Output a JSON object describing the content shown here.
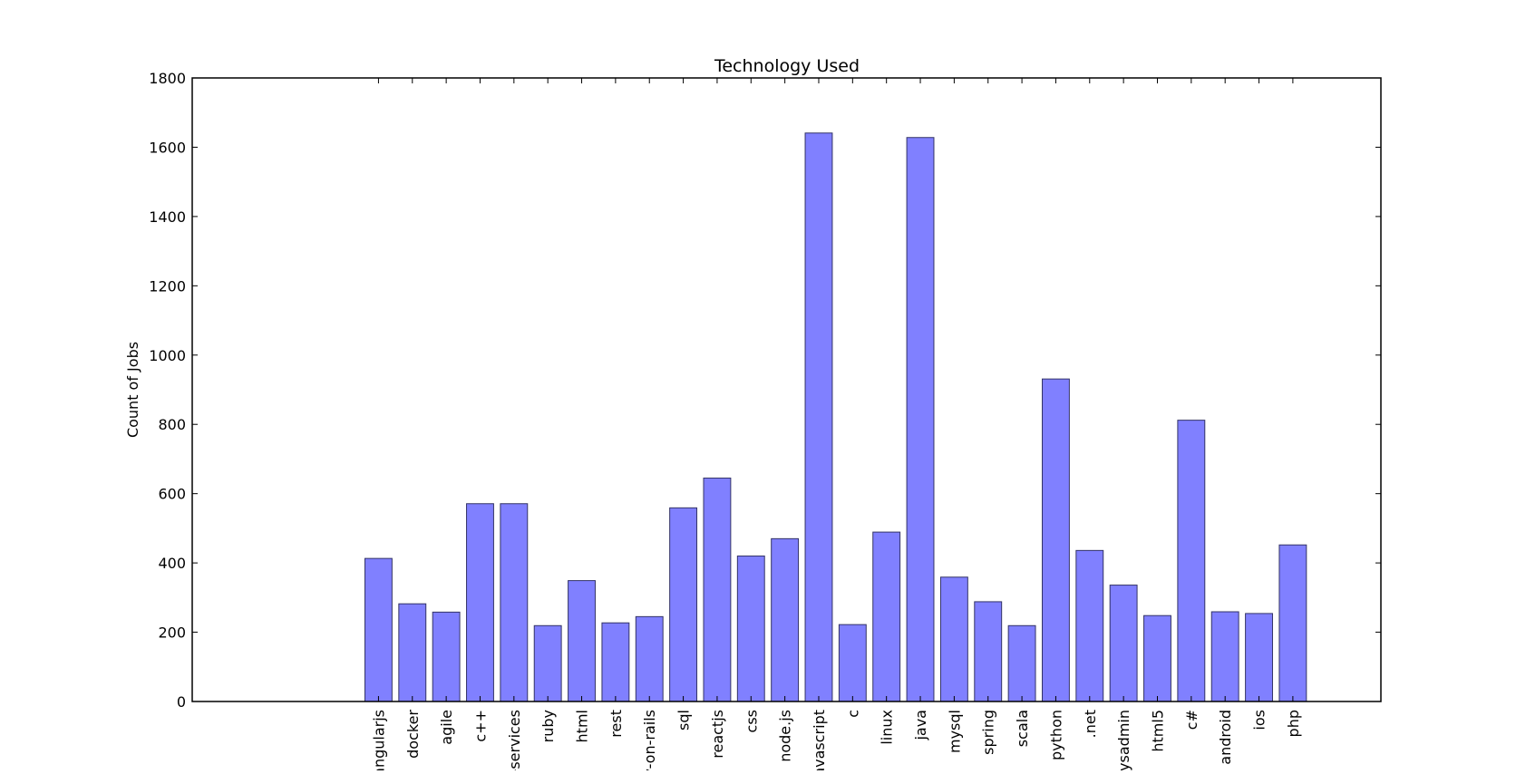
{
  "chart_data": {
    "type": "bar",
    "title": "Technology Used",
    "xlabel": "",
    "ylabel": "Count of Jobs",
    "ylim": [
      0,
      1800
    ],
    "yticks": [
      0,
      200,
      400,
      600,
      800,
      1000,
      1200,
      1400,
      1600,
      1800
    ],
    "xlim": [
      -5.5,
      29.6
    ],
    "grid": false,
    "legend": "none",
    "bar_color": "#8080ff",
    "bar_edge_color": "#333366",
    "categories": [
      "angularjs",
      "docker",
      "agile",
      "c++",
      "web-services",
      "ruby",
      "html",
      "rest",
      "ruby-on-rails",
      "sql",
      "reactjs",
      "css",
      "node.js",
      "javascript",
      "c",
      "linux",
      "java",
      "mysql",
      "spring",
      "scala",
      "python",
      ".net",
      "sysadmin",
      "html5",
      "c#",
      "android",
      "ios",
      "php"
    ],
    "values": [
      413,
      282,
      258,
      571,
      571,
      219,
      349,
      227,
      245,
      559,
      645,
      420,
      470,
      1641,
      222,
      489,
      1628,
      359,
      288,
      219,
      931,
      436,
      336,
      248,
      812,
      259,
      254,
      452
    ]
  }
}
